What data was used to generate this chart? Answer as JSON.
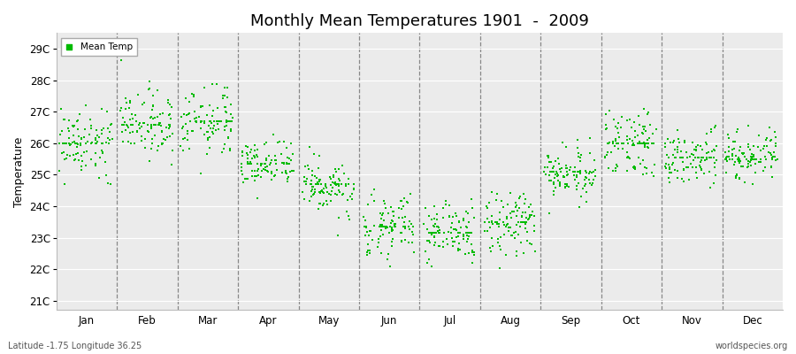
{
  "title": "Monthly Mean Temperatures 1901  -  2009",
  "ylabel": "Temperature",
  "ytick_labels": [
    "21C",
    "22C",
    "23C",
    "24C",
    "25C",
    "26C",
    "27C",
    "28C",
    "29C"
  ],
  "ytick_values": [
    21,
    22,
    23,
    24,
    25,
    26,
    27,
    28,
    29
  ],
  "ylim": [
    20.7,
    29.5
  ],
  "xlim": [
    0,
    12
  ],
  "month_labels": [
    "Jan",
    "Feb",
    "Mar",
    "Apr",
    "May",
    "Jun",
    "Jul",
    "Aug",
    "Sep",
    "Oct",
    "Nov",
    "Dec"
  ],
  "subtitle_left": "Latitude -1.75 Longitude 36.25",
  "subtitle_right": "worldspecies.org",
  "dot_color": "#00bb00",
  "bg_color": "#ebebeb",
  "legend_label": "Mean Temp",
  "monthly_mean_temps": [
    26.0,
    26.6,
    26.7,
    25.35,
    24.7,
    23.35,
    23.15,
    23.5,
    25.1,
    26.0,
    25.55,
    25.5
  ],
  "monthly_std": [
    0.55,
    0.52,
    0.58,
    0.42,
    0.48,
    0.5,
    0.48,
    0.48,
    0.42,
    0.55,
    0.42,
    0.42
  ],
  "monthly_spread": [
    2.8,
    2.6,
    2.6,
    1.8,
    2.2,
    2.2,
    2.2,
    1.9,
    1.7,
    2.5,
    1.5,
    1.8
  ],
  "n_years": 109
}
